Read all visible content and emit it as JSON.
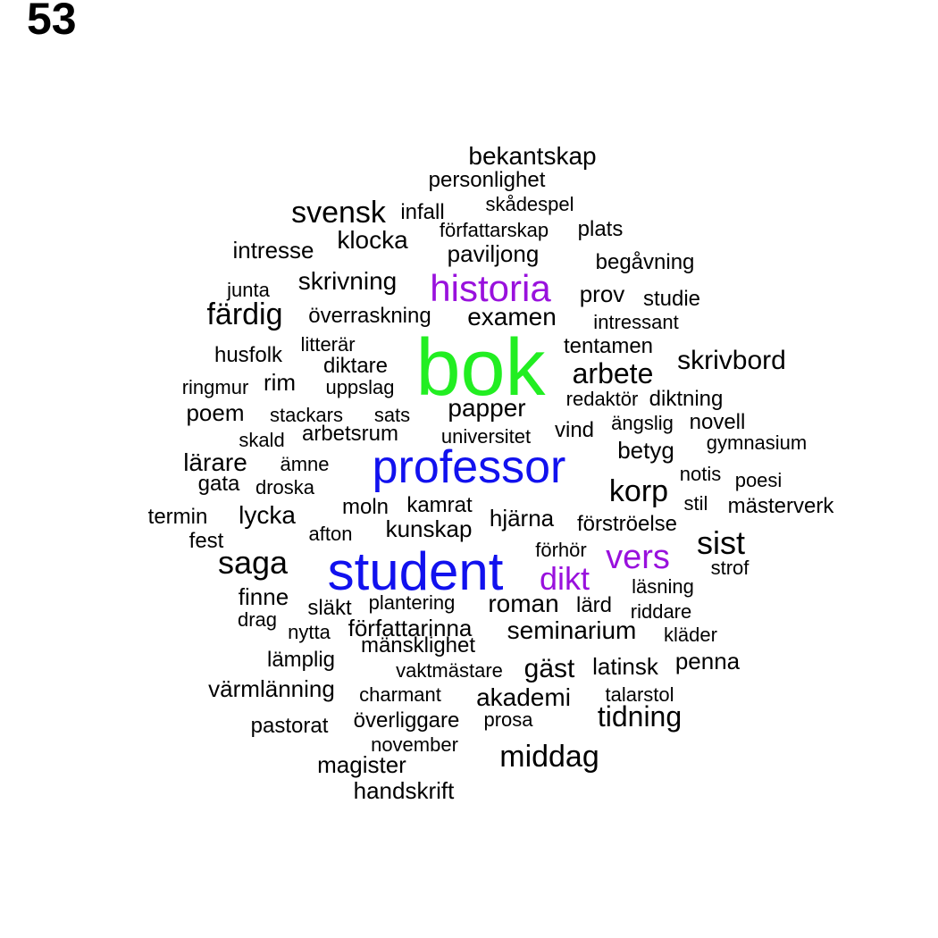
{
  "panel_label": "53",
  "colors": {
    "default": "#000000",
    "green": "#22ee22",
    "blue": "#1111ee",
    "purple": "#9911dd"
  },
  "words": [
    {
      "text": "bok",
      "color": "green"
    },
    {
      "text": "student",
      "color": "blue"
    },
    {
      "text": "professor",
      "color": "blue"
    },
    {
      "text": "historia",
      "color": "purple"
    },
    {
      "text": "vers",
      "color": "purple"
    },
    {
      "text": "dikt",
      "color": "purple"
    },
    {
      "text": "bekantskap"
    },
    {
      "text": "personlighet"
    },
    {
      "text": "svensk"
    },
    {
      "text": "infall"
    },
    {
      "text": "skådespel"
    },
    {
      "text": "författarskap"
    },
    {
      "text": "plats"
    },
    {
      "text": "intresse"
    },
    {
      "text": "klocka"
    },
    {
      "text": "paviljong"
    },
    {
      "text": "begåvning"
    },
    {
      "text": "skrivning"
    },
    {
      "text": "junta"
    },
    {
      "text": "prov"
    },
    {
      "text": "studie"
    },
    {
      "text": "färdig"
    },
    {
      "text": "överraskning"
    },
    {
      "text": "examen"
    },
    {
      "text": "intressant"
    },
    {
      "text": "litterär"
    },
    {
      "text": "husfolk"
    },
    {
      "text": "tentamen"
    },
    {
      "text": "diktare"
    },
    {
      "text": "arbete"
    },
    {
      "text": "skrivbord"
    },
    {
      "text": "ringmur"
    },
    {
      "text": "rim"
    },
    {
      "text": "uppslag"
    },
    {
      "text": "redaktör"
    },
    {
      "text": "diktning"
    },
    {
      "text": "poem"
    },
    {
      "text": "stackars"
    },
    {
      "text": "sats"
    },
    {
      "text": "papper"
    },
    {
      "text": "ängslig"
    },
    {
      "text": "novell"
    },
    {
      "text": "skald"
    },
    {
      "text": "arbetsrum"
    },
    {
      "text": "universitet"
    },
    {
      "text": "vind"
    },
    {
      "text": "gymnasium"
    },
    {
      "text": "betyg"
    },
    {
      "text": "lärare"
    },
    {
      "text": "ämne"
    },
    {
      "text": "notis"
    },
    {
      "text": "poesi"
    },
    {
      "text": "gata"
    },
    {
      "text": "droska"
    },
    {
      "text": "korp"
    },
    {
      "text": "moln"
    },
    {
      "text": "kamrat"
    },
    {
      "text": "stil"
    },
    {
      "text": "mästerverk"
    },
    {
      "text": "termin"
    },
    {
      "text": "lycka"
    },
    {
      "text": "hjärna"
    },
    {
      "text": "förströelse"
    },
    {
      "text": "kunskap"
    },
    {
      "text": "afton"
    },
    {
      "text": "fest"
    },
    {
      "text": "sist"
    },
    {
      "text": "förhör"
    },
    {
      "text": "saga"
    },
    {
      "text": "strof"
    },
    {
      "text": "läsning"
    },
    {
      "text": "finne"
    },
    {
      "text": "plantering"
    },
    {
      "text": "roman"
    },
    {
      "text": "lärd"
    },
    {
      "text": "släkt"
    },
    {
      "text": "riddare"
    },
    {
      "text": "drag"
    },
    {
      "text": "författarinna"
    },
    {
      "text": "nytta"
    },
    {
      "text": "seminarium"
    },
    {
      "text": "kläder"
    },
    {
      "text": "mänsklighet"
    },
    {
      "text": "lämplig"
    },
    {
      "text": "penna"
    },
    {
      "text": "vaktmästare"
    },
    {
      "text": "gäst"
    },
    {
      "text": "latinsk"
    },
    {
      "text": "värmlänning"
    },
    {
      "text": "charmant"
    },
    {
      "text": "akademi"
    },
    {
      "text": "talarstol"
    },
    {
      "text": "tidning"
    },
    {
      "text": "pastorat"
    },
    {
      "text": "överliggare"
    },
    {
      "text": "prosa"
    },
    {
      "text": "november"
    },
    {
      "text": "middag"
    },
    {
      "text": "magister"
    },
    {
      "text": "handskrift"
    }
  ]
}
